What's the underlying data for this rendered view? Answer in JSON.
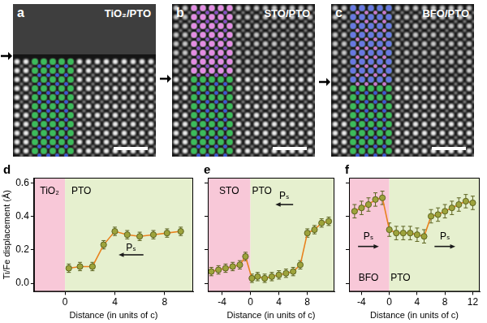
{
  "images": [
    {
      "letter": "a",
      "title": "TiO₂/PTO"
    },
    {
      "letter": "b",
      "title": "STO/PTO"
    },
    {
      "letter": "c",
      "title": "BFO/PTO"
    }
  ],
  "chart_data": [
    {
      "letter": "d",
      "type": "line",
      "color": "#e8821e",
      "marker": "circle",
      "x_label": "Distance (in units of c)",
      "y_label": "Ti/Fe displacement (Å)",
      "x": [
        0.3,
        1.2,
        2.2,
        3.1,
        4.0,
        5.0,
        6.0,
        7.1,
        8.2,
        9.3
      ],
      "values": [
        0.09,
        0.1,
        0.1,
        0.23,
        0.31,
        0.29,
        0.28,
        0.29,
        0.3,
        0.31
      ],
      "errors": [
        0.025,
        0.025,
        0.025,
        0.025,
        0.025,
        0.025,
        0.025,
        0.025,
        0.025,
        0.025
      ],
      "xlim": [
        -2.5,
        10.3
      ],
      "xticks": [
        0,
        4,
        8
      ],
      "ylim": [
        -0.05,
        0.63
      ],
      "yticks": [
        {
          "value": 0,
          "label": "0.0"
        },
        {
          "value": 0.2,
          "label": "0.2"
        },
        {
          "value": 0.4,
          "label": "0.4"
        },
        {
          "value": 0.6,
          "label": "0.6"
        }
      ],
      "regions": [
        {
          "from": -2.5,
          "to": 0,
          "color": "#f8c8d8"
        },
        {
          "from": 0,
          "to": 10.3,
          "color": "#e6f0cf"
        }
      ],
      "annotations": [
        {
          "text": "TiO₂",
          "x": -1.25,
          "y": 0.55
        },
        {
          "text": "PTO",
          "x": 1.3,
          "y": 0.55
        },
        {
          "text": "Pₛ",
          "x": 5.3,
          "y": 0.21
        }
      ],
      "arrows": [
        {
          "from": [
            6.3,
            0.17
          ],
          "to": [
            4.3,
            0.17
          ]
        }
      ]
    },
    {
      "letter": "e",
      "type": "line",
      "color": "#e8821e",
      "marker": "circle",
      "x_label": "Distance (in units of c)",
      "tick_labels": "x",
      "x": [
        -5.5,
        -4.5,
        -3.5,
        -2.5,
        -1.5,
        -0.7,
        0.2,
        1,
        2,
        3,
        4,
        5,
        6,
        7,
        8,
        9,
        10,
        11
      ],
      "values": [
        0.07,
        0.08,
        0.09,
        0.1,
        0.11,
        0.16,
        0.03,
        0.04,
        0.03,
        0.04,
        0.05,
        0.06,
        0.07,
        0.11,
        0.3,
        0.32,
        0.36,
        0.37
      ],
      "errors": [
        0.025,
        0.025,
        0.025,
        0.025,
        0.025,
        0.025,
        0.025,
        0.025,
        0.025,
        0.025,
        0.025,
        0.025,
        0.025,
        0.025,
        0.025,
        0.025,
        0.025,
        0.025
      ],
      "xlim": [
        -6,
        11.8
      ],
      "xticks": [
        -4,
        0,
        4,
        8
      ],
      "ylim": [
        -0.05,
        0.63
      ],
      "yticks": [
        {
          "value": 0,
          "label": "0.0"
        },
        {
          "value": 0.2,
          "label": "0.2"
        },
        {
          "value": 0.4,
          "label": "0.4"
        },
        {
          "value": 0.6,
          "label": "0.6"
        }
      ],
      "regions": [
        {
          "from": -6,
          "to": 0,
          "color": "#f8c8d8"
        },
        {
          "from": 0,
          "to": 11.8,
          "color": "#e6f0cf"
        }
      ],
      "annotations": [
        {
          "text": "STO",
          "x": -3,
          "y": 0.55
        },
        {
          "text": "PTO",
          "x": 1.6,
          "y": 0.55
        },
        {
          "text": "Pₛ",
          "x": 4.75,
          "y": 0.52
        }
      ],
      "arrows": [
        {
          "from": [
            6,
            0.47
          ],
          "to": [
            3.5,
            0.47
          ]
        }
      ]
    },
    {
      "letter": "f",
      "type": "line",
      "color": "#e8821e",
      "marker": "circle",
      "x_label": "Distance (in units of c)",
      "tick_labels": "x",
      "x": [
        -5,
        -4,
        -3,
        -2,
        -1,
        0,
        1,
        2,
        3,
        4,
        5,
        6,
        7,
        8,
        9,
        10,
        11,
        12
      ],
      "values": [
        0.43,
        0.45,
        0.47,
        0.5,
        0.51,
        0.32,
        0.3,
        0.3,
        0.3,
        0.29,
        0.28,
        0.4,
        0.41,
        0.43,
        0.45,
        0.47,
        0.49,
        0.48
      ],
      "errors": [
        0.04,
        0.04,
        0.04,
        0.04,
        0.04,
        0.04,
        0.04,
        0.04,
        0.04,
        0.04,
        0.04,
        0.04,
        0.04,
        0.04,
        0.04,
        0.04,
        0.04,
        0.04
      ],
      "xlim": [
        -5.8,
        13
      ],
      "xticks": [
        -4,
        0,
        4,
        8,
        12
      ],
      "ylim": [
        -0.05,
        0.63
      ],
      "yticks": [
        {
          "value": 0,
          "label": "0.0"
        },
        {
          "value": 0.2,
          "label": "0.2"
        },
        {
          "value": 0.4,
          "label": "0.4"
        },
        {
          "value": 0.6,
          "label": "0.6"
        }
      ],
      "regions": [
        {
          "from": -5.8,
          "to": 0,
          "color": "#f8c8d8"
        },
        {
          "from": 0,
          "to": 13,
          "color": "#e6f0cf"
        }
      ],
      "annotations": [
        {
          "text": "BFO",
          "x": -3,
          "y": 0.03
        },
        {
          "text": "PTO",
          "x": 1.6,
          "y": 0.03
        },
        {
          "text": "Pₛ",
          "x": -3,
          "y": 0.28
        },
        {
          "text": "Pₛ",
          "x": 8,
          "y": 0.28
        }
      ],
      "arrows": [
        {
          "from": [
            -4.5,
            0.22
          ],
          "to": [
            -1.5,
            0.22
          ]
        },
        {
          "from": [
            6.5,
            0.22
          ],
          "to": [
            9.5,
            0.22
          ]
        }
      ]
    }
  ]
}
